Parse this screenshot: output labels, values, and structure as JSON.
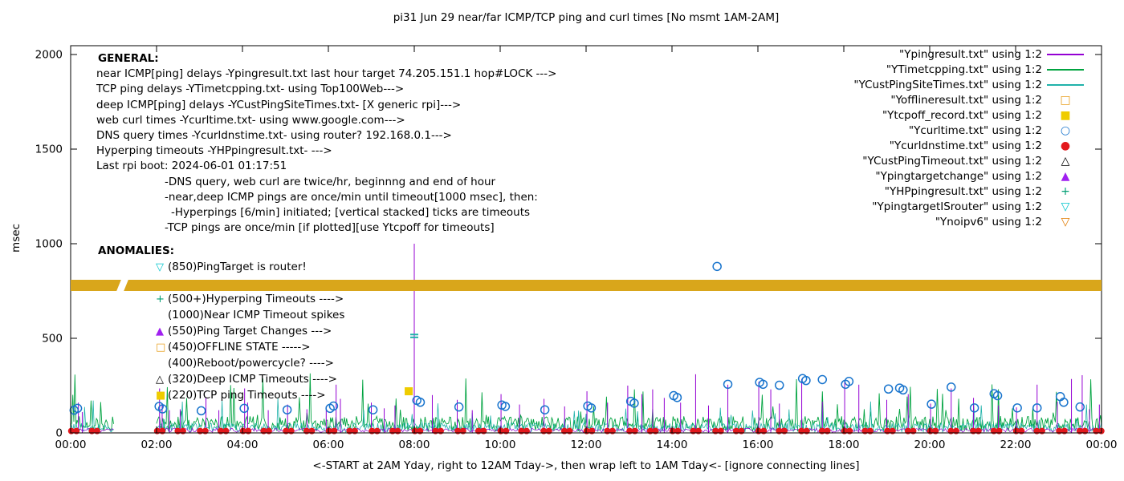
{
  "title": "pi31 Jun 29  near/far ICMP/TCP ping and curl times [No msmt 1AM-2AM]",
  "general": {
    "heading": "GENERAL:",
    "lines": [
      {
        "text": "near ICMP[ping] delays -Ypingresult.txt last hour target 74.205.151.1 hop#LOCK --->",
        "indent": 0
      },
      {
        "text": "TCP ping delays -YTimetcpping.txt- using Top100Web--->",
        "indent": 0
      },
      {
        "text": "deep ICMP[ping] delays -YCustPingSiteTimes.txt- [X generic rpi]--->",
        "indent": 0
      },
      {
        "text": "web curl times -Ycurltime.txt- using www.google.com--->",
        "indent": 0
      },
      {
        "text": "DNS query times -Ycurldnstime.txt- using router? 192.168.0.1--->",
        "indent": 0
      },
      {
        "text": "Hyperping timeouts -YHPpingresult.txt- --->",
        "indent": 0
      },
      {
        "text": "Last rpi boot: 2024-06-01 01:17:51",
        "indent": 0
      },
      {
        "text": "-DNS query, web curl are twice/hr, beginnng and end of hour",
        "indent": 1
      },
      {
        "text": "-near,deep ICMP pings are once/min until timeout[1000 msec], then:",
        "indent": 1
      },
      {
        "text": "-Hyperpings [6/min] initiated; [vertical stacked] ticks are timeouts",
        "indent": 2
      },
      {
        "text": "-TCP pings are once/min [if plotted][use Ytcpoff for timeouts]",
        "indent": 1
      }
    ]
  },
  "anomalies": {
    "heading": "ANOMALIES:",
    "items": [
      {
        "symbol": "triangle-down-open",
        "color": "#00c5cd",
        "text": "(850)PingTarget is router!"
      },
      {
        "symbol": "none",
        "color": "",
        "text": ""
      },
      {
        "symbol": "plus",
        "color": "#009e73",
        "text": "(500+)Hyperping Timeouts ---->"
      },
      {
        "symbol": "none",
        "color": "",
        "text": "(1000)Near ICMP Timeout spikes"
      },
      {
        "symbol": "triangle-up-filled",
        "color": "#a020f0",
        "text": "(550)Ping Target Changes --->"
      },
      {
        "symbol": "square-open",
        "color": "#e8a020",
        "text": "(450)OFFLINE STATE ----->"
      },
      {
        "symbol": "none",
        "color": "",
        "text": "(400)Reboot/powercycle? ---->"
      },
      {
        "symbol": "triangle-up-open",
        "color": "#000000",
        "text": "(320)Deep ICMP Timeouts ---->"
      },
      {
        "symbol": "square-filled",
        "color": "#efcc00",
        "text": "(220)TCP ping Timeouts ---->"
      }
    ]
  },
  "legend": {
    "position": "top-right",
    "items": [
      {
        "label": "\"Ypingresult.txt\" using 1:2",
        "sample": "line",
        "color": "#9400d3"
      },
      {
        "label": "\"YTimetcpping.txt\" using 1:2",
        "sample": "line",
        "color": "#00a340"
      },
      {
        "label": "\"YCustPingSiteTimes.txt\" using 1:2",
        "sample": "line",
        "color": "#20b2aa"
      },
      {
        "label": "\"Yofflineresult.txt\" using 1:2",
        "sample": "square-open",
        "color": "#e8a020"
      },
      {
        "label": "\"Ytcpoff_record.txt\" using 1:2",
        "sample": "square-filled",
        "color": "#efcc00"
      },
      {
        "label": "\"Ycurltime.txt\" using 1:2",
        "sample": "circle-open",
        "color": "#1874cd"
      },
      {
        "label": "\"Ycurldnstime.txt\" using 1:2",
        "sample": "circle-filled",
        "color": "#e3191d"
      },
      {
        "label": "\"YCustPingTimeout.txt\" using 1:2",
        "sample": "triangle-up-open",
        "color": "#000000"
      },
      {
        "label": "\"Ypingtargetchange\" using 1:2",
        "sample": "triangle-up-filled",
        "color": "#a020f0"
      },
      {
        "label": "\"YHPpingresult.txt\" using 1:2",
        "sample": "plus",
        "color": "#009e73"
      },
      {
        "label": "\"YpingtargetISrouter\" using 1:2",
        "sample": "triangle-down-open",
        "color": "#00c5cd"
      },
      {
        "label": "\"Ynoipv6\" using 1:2",
        "sample": "triangle-down-open",
        "color": "#e07b00"
      }
    ]
  },
  "chart_data": {
    "type": "line",
    "title": "pi31 Jun 29  near/far ICMP/TCP ping and curl times [No msmt 1AM-2AM]",
    "xlabel": "<-START at 2AM Yday, right to 12AM Tday->, then wrap left to 1AM Tday<- [ignore connecting lines]",
    "ylabel": "msec",
    "grid": false,
    "legend_position": "top-right",
    "xlim_hours": [
      0,
      24
    ],
    "ylim": [
      0,
      2000
    ],
    "y_ticks": [
      0,
      500,
      1000,
      1500,
      2000
    ],
    "x_tick_hours": [
      0,
      2,
      4,
      6,
      8,
      10,
      12,
      14,
      16,
      18,
      20,
      22,
      24
    ],
    "x_tick_labels": [
      "00:00",
      "02:00",
      "04:00",
      "06:00",
      "08:00",
      "10:00",
      "12:00",
      "14:00",
      "16:00",
      "18:00",
      "20:00",
      "22:00",
      "00:00"
    ],
    "gap_hours": [
      1.0,
      2.0
    ],
    "series": [
      {
        "name": "YTimetcpping.txt",
        "style": "noise-line",
        "color": "#00a340",
        "width": 0.9,
        "base": 8,
        "amp": 80,
        "spike_chance": 0.05,
        "spike_amp": 260,
        "points_per_hour": 40,
        "seed": 12
      },
      {
        "name": "YCustPingSiteTimes.txt",
        "style": "noise-line",
        "color": "#20b2aa",
        "width": 0.8,
        "base": 4,
        "amp": 48,
        "spike_chance": 0.04,
        "spike_amp": 150,
        "points_per_hour": 40,
        "seed": 77
      },
      {
        "name": "Ypingresult-baseline",
        "style": "noise-line",
        "color": "#9400d3",
        "width": 0.7,
        "base": 3,
        "amp": 22,
        "spike_chance": 0,
        "spike_amp": 0,
        "points_per_hour": 30,
        "seed": 3
      },
      {
        "name": "Ypingresult.txt",
        "style": "impulses",
        "color": "#9400d3",
        "points": [
          [
            0.18,
            160
          ],
          [
            0.27,
            110
          ],
          [
            2.07,
            235
          ],
          [
            2.13,
            150
          ],
          [
            2.3,
            120
          ],
          [
            2.55,
            125
          ],
          [
            3.15,
            185
          ],
          [
            3.45,
            120
          ],
          [
            4.05,
            235
          ],
          [
            4.12,
            160
          ],
          [
            4.6,
            120
          ],
          [
            5.05,
            150
          ],
          [
            5.5,
            125
          ],
          [
            5.95,
            140
          ],
          [
            6.18,
            255
          ],
          [
            6.28,
            180
          ],
          [
            7.0,
            160
          ],
          [
            7.3,
            130
          ],
          [
            7.55,
            145
          ],
          [
            8.0,
            1000
          ],
          [
            8.42,
            200
          ],
          [
            9.0,
            175
          ],
          [
            9.35,
            120
          ],
          [
            10.02,
            205
          ],
          [
            10.45,
            150
          ],
          [
            11.02,
            180
          ],
          [
            11.5,
            140
          ],
          [
            12.02,
            220
          ],
          [
            12.5,
            160
          ],
          [
            12.97,
            250
          ],
          [
            13.3,
            205
          ],
          [
            13.55,
            230
          ],
          [
            13.82,
            185
          ],
          [
            14.2,
            160
          ],
          [
            14.55,
            310
          ],
          [
            14.85,
            145
          ],
          [
            15.3,
            255
          ],
          [
            16.02,
            270
          ],
          [
            16.3,
            230
          ],
          [
            16.5,
            155
          ],
          [
            17.02,
            285
          ],
          [
            17.5,
            165
          ],
          [
            18.02,
            275
          ],
          [
            18.35,
            255
          ],
          [
            19.0,
            175
          ],
          [
            19.5,
            205
          ],
          [
            20.02,
            155
          ],
          [
            20.5,
            235
          ],
          [
            21.02,
            185
          ],
          [
            21.6,
            145
          ],
          [
            22.02,
            135
          ],
          [
            22.5,
            255
          ],
          [
            22.97,
            165
          ],
          [
            23.3,
            285
          ],
          [
            23.55,
            305
          ],
          [
            23.72,
            125
          ],
          [
            23.95,
            150
          ]
        ]
      },
      {
        "name": "YCustPingSiteTimes-marks",
        "style": "hline-marks",
        "color": "#20b2aa",
        "points": [
          [
            8.0,
            505
          ],
          [
            8.0,
            520
          ]
        ]
      },
      {
        "name": "Ytcpoff_record.txt",
        "style": "square-filled",
        "color": "#efcc00",
        "points": [
          [
            7.87,
            220
          ]
        ]
      },
      {
        "name": "Ycurltime.txt",
        "style": "circles-open",
        "color": "#1874cd",
        "points": [
          [
            0.08,
            120
          ],
          [
            0.16,
            130
          ],
          [
            2.06,
            140
          ],
          [
            2.14,
            127
          ],
          [
            3.04,
            117
          ],
          [
            4.04,
            130
          ],
          [
            5.04,
            122
          ],
          [
            6.04,
            130
          ],
          [
            6.12,
            142
          ],
          [
            7.04,
            122
          ],
          [
            8.06,
            172
          ],
          [
            8.14,
            162
          ],
          [
            9.04,
            137
          ],
          [
            10.04,
            147
          ],
          [
            10.12,
            140
          ],
          [
            11.04,
            122
          ],
          [
            12.04,
            142
          ],
          [
            12.12,
            132
          ],
          [
            13.04,
            167
          ],
          [
            13.12,
            157
          ],
          [
            14.04,
            197
          ],
          [
            14.12,
            187
          ],
          [
            15.05,
            880
          ],
          [
            15.3,
            257
          ],
          [
            16.04,
            267
          ],
          [
            16.12,
            257
          ],
          [
            16.5,
            252
          ],
          [
            17.04,
            287
          ],
          [
            17.12,
            277
          ],
          [
            17.5,
            282
          ],
          [
            18.04,
            257
          ],
          [
            18.12,
            272
          ],
          [
            19.04,
            232
          ],
          [
            19.3,
            237
          ],
          [
            19.38,
            227
          ],
          [
            20.04,
            152
          ],
          [
            20.5,
            242
          ],
          [
            21.04,
            132
          ],
          [
            21.5,
            207
          ],
          [
            21.58,
            197
          ],
          [
            22.04,
            132
          ],
          [
            22.5,
            132
          ],
          [
            23.04,
            192
          ],
          [
            23.12,
            162
          ],
          [
            23.5,
            137
          ]
        ]
      },
      {
        "name": "Ycurldnstime.txt",
        "style": "dots-filled",
        "color": "#e3191d",
        "y": 10,
        "hours": [
          0.07,
          0.55,
          2.07,
          2.55,
          3.07,
          3.55,
          4.07,
          4.55,
          5.07,
          5.55,
          6.07,
          6.55,
          7.07,
          7.55,
          8.07,
          8.55,
          9.07,
          9.55,
          10.07,
          10.55,
          11.07,
          11.55,
          12.07,
          12.55,
          13.07,
          13.55,
          14.07,
          14.55,
          15.07,
          15.55,
          16.07,
          16.55,
          17.07,
          17.55,
          18.07,
          18.55,
          19.07,
          19.55,
          20.07,
          20.55,
          21.07,
          21.55,
          22.07,
          22.55,
          23.07,
          23.55,
          23.93
        ]
      },
      {
        "name": "Ynoipv6-band",
        "style": "band",
        "color": "#d9a61b",
        "y_center": 780,
        "y_halfwidth": 30,
        "gap_hours": [
          1.12,
          1.29
        ]
      }
    ]
  }
}
